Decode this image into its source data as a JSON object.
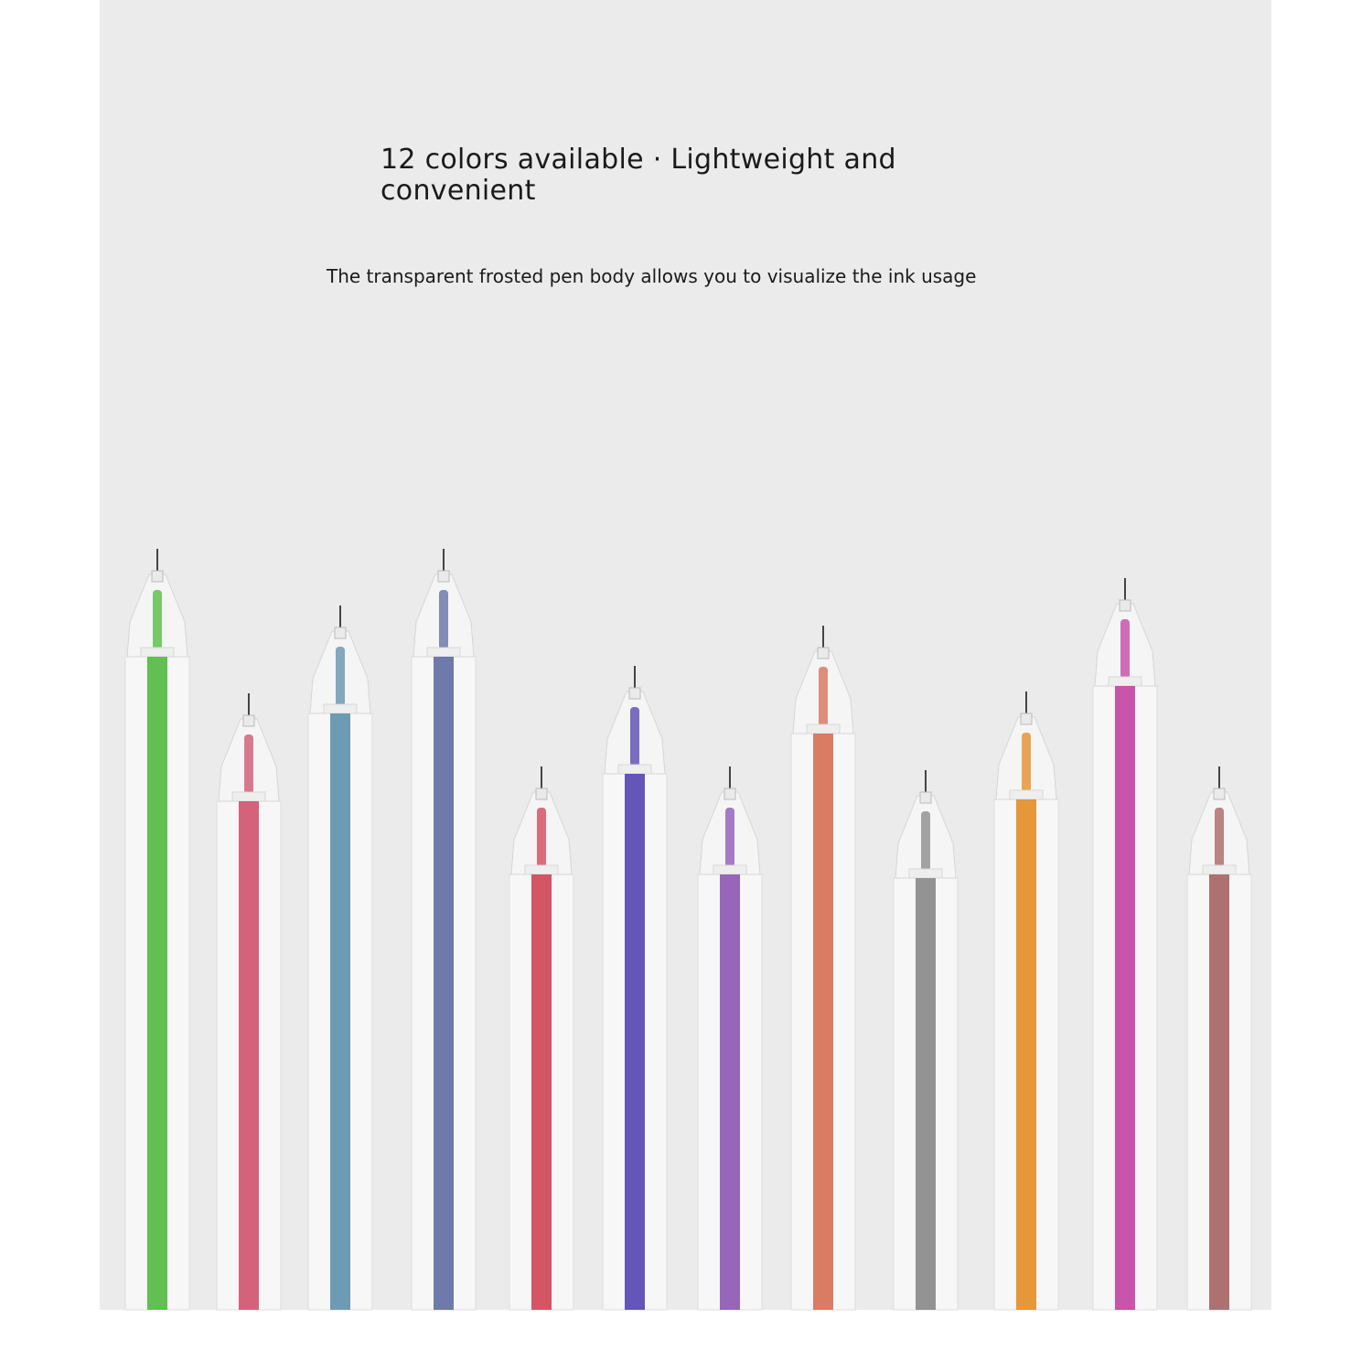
{
  "headline": "12 colors available · Lightweight and convenient",
  "subline": "The transparent frosted pen body allows you to visualize the ink usage",
  "background_color": "#ebebeb",
  "pens": [
    {
      "name": "green",
      "ink": "#4cb83a"
    },
    {
      "name": "rose",
      "ink": "#cf4d6a"
    },
    {
      "name": "teal-blue",
      "ink": "#5a8eaa"
    },
    {
      "name": "slate-blue",
      "ink": "#5a699f"
    },
    {
      "name": "red",
      "ink": "#cf3f4f"
    },
    {
      "name": "blue-violet",
      "ink": "#4f3fb0"
    },
    {
      "name": "purple",
      "ink": "#8a52b3"
    },
    {
      "name": "salmon",
      "ink": "#d66a50"
    },
    {
      "name": "gray",
      "ink": "#858585"
    },
    {
      "name": "orange",
      "ink": "#e38a20"
    },
    {
      "name": "magenta",
      "ink": "#c23ea2"
    },
    {
      "name": "brown",
      "ink": "#a35e5e"
    }
  ]
}
